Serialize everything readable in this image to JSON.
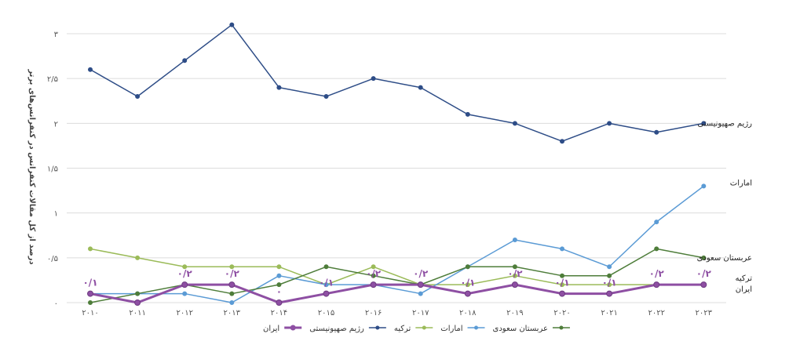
{
  "chart_data": {
    "type": "line",
    "title": "",
    "xlabel": "",
    "ylabel": "درصد از کل مقالات کنفرانس در کنفرانس‌های برتر",
    "ylim": [
      0,
      3
    ],
    "y_tick_labels": [
      "۰",
      "۰/۵",
      "۱",
      "۱/۵",
      "۲",
      "۲/۵",
      "۳"
    ],
    "y_tick_values": [
      0,
      0.5,
      1,
      1.5,
      2,
      2.5,
      3
    ],
    "categories": [
      "۲۰۱۰",
      "۲۰۱۱",
      "۲۰۱۲",
      "۲۰۱۳",
      "۲۰۱۴",
      "۲۰۱۵",
      "۲۰۱۶",
      "۲۰۱۷",
      "۲۰۱۸",
      "۲۰۱۹",
      "۲۰۲۰",
      "۲۰۲۱",
      "۲۰۲۲",
      "۲۰۲۳"
    ],
    "grid": true,
    "legend_position": "bottom",
    "series": [
      {
        "name": "ایران",
        "color": "#8e4fa3",
        "end_label": "ایران",
        "values": [
          0.1,
          0.0,
          0.2,
          0.2,
          0.0,
          0.1,
          0.2,
          0.2,
          0.1,
          0.2,
          0.1,
          0.1,
          0.2,
          0.2
        ],
        "data_labels": [
          "۰/۱",
          "",
          "۰/۲",
          "۰/۲",
          "۰",
          "۰/۱",
          "۰/۲",
          "۰/۲",
          "۰/۱",
          "۰/۲",
          "۰/۱",
          "۰/۱",
          "۰/۲",
          "۰/۲"
        ]
      },
      {
        "name": "رژیم صهیونیستی",
        "color": "#2e4d87",
        "end_label": "رژیم صهیونیستی",
        "values": [
          2.6,
          2.3,
          2.7,
          3.1,
          2.4,
          2.3,
          2.5,
          2.4,
          2.1,
          2.0,
          1.8,
          2.0,
          1.9,
          2.0
        ]
      },
      {
        "name": "ترکیه",
        "color": "#9bbb59",
        "end_label": "ترکیه",
        "values": [
          0.6,
          0.5,
          0.4,
          0.4,
          0.4,
          0.2,
          0.4,
          0.2,
          0.2,
          0.3,
          0.2,
          0.2,
          0.2,
          0.2
        ]
      },
      {
        "name": "امارات",
        "color": "#5b9bd5",
        "end_label": "امارات",
        "values": [
          0.1,
          0.1,
          0.1,
          0.0,
          0.3,
          0.2,
          0.2,
          0.1,
          0.4,
          0.7,
          0.6,
          0.4,
          0.9,
          1.3
        ]
      },
      {
        "name": "عربستان سعودی",
        "color": "#4e7d3a",
        "end_label": "عربستان سعودی",
        "values": [
          0.0,
          0.1,
          0.2,
          0.1,
          0.2,
          0.4,
          0.3,
          0.2,
          0.4,
          0.4,
          0.3,
          0.3,
          0.6,
          0.5
        ]
      }
    ],
    "legend_order": [
      "ایران",
      "رژیم صهیونیستی",
      "ترکیه",
      "امارات",
      "عربستان سعودی"
    ]
  }
}
